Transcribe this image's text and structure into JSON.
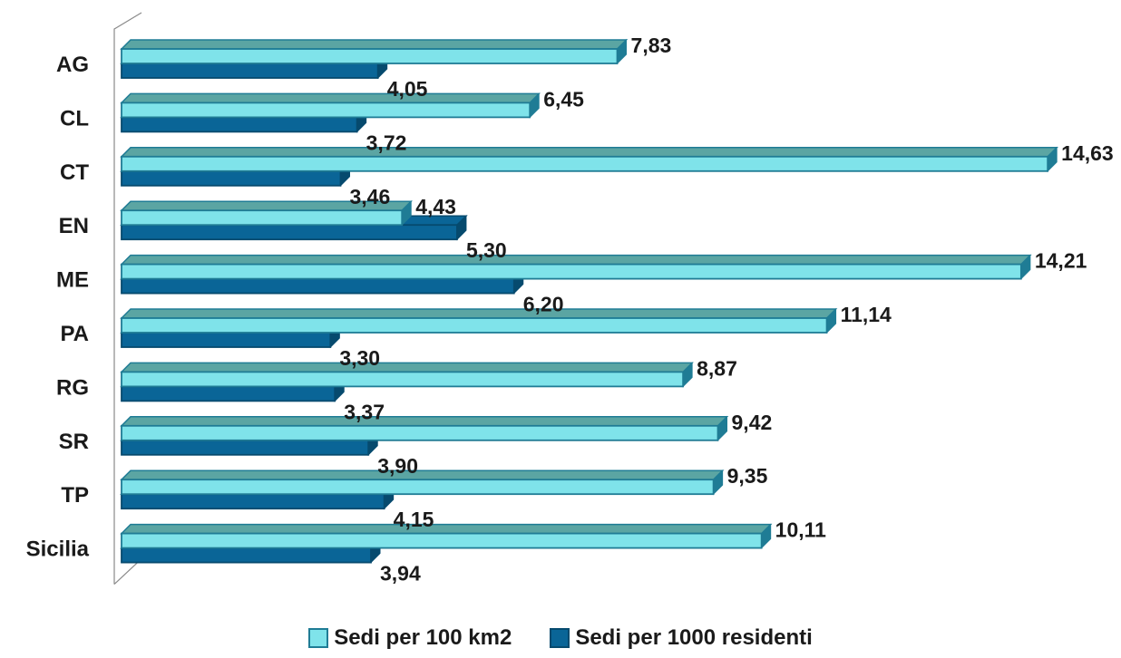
{
  "chart_data": {
    "type": "bar",
    "orientation": "horizontal",
    "categories": [
      "AG",
      "CL",
      "CT",
      "EN",
      "ME",
      "PA",
      "RG",
      "SR",
      "TP",
      "Sicilia"
    ],
    "series": [
      {
        "name": "Sedi per 100 km2",
        "values": [
          7.83,
          6.45,
          14.63,
          4.43,
          14.21,
          11.14,
          8.87,
          9.42,
          9.35,
          10.11
        ],
        "labels": [
          "7,83",
          "6,45",
          "14,63",
          "4,43",
          "14,21",
          "11,14",
          "8,87",
          "9,42",
          "9,35",
          "10,11"
        ],
        "color": "#7FE3EA",
        "edge_color": "#1F7C95",
        "top_color": "#5BA5A3"
      },
      {
        "name": "Sedi per 1000 residenti",
        "values": [
          4.05,
          3.72,
          3.46,
          5.3,
          6.2,
          3.3,
          3.37,
          3.9,
          4.15,
          3.94
        ],
        "labels": [
          "4,05",
          "3,72",
          "3,46",
          "5,30",
          "6,20",
          "3,30",
          "3,37",
          "3,90",
          "4,15",
          "3,94"
        ],
        "color": "#0A6597",
        "edge_color": "#064A6E",
        "top_color": "#0A6597"
      }
    ],
    "xlim": [
      0,
      14.63
    ],
    "grid": false,
    "legend_position": "bottom",
    "style": "3d-bars"
  }
}
